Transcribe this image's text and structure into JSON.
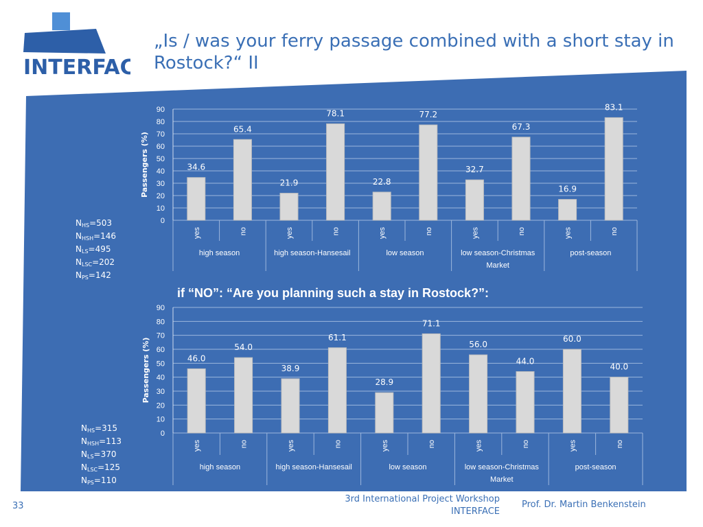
{
  "logo": {
    "text": "INTERFACE"
  },
  "title": "„Is / was your ferry passage combined with a short stay in Rostock?“ II",
  "question": "if “NO”: “Are you planning such a stay in Rostock?”:",
  "colors": {
    "panel": "#3d6db3",
    "bar": "#d9d9d9",
    "bar_edge": "#bfbfbf",
    "text_blue": "#3a6fb5"
  },
  "n_values": {
    "chart1": [
      {
        "main": "N",
        "sub": "HS",
        "value": "=503"
      },
      {
        "main": "N",
        "sub": "HSH",
        "value": "=146"
      },
      {
        "main": "N",
        "sub": "LS",
        "value": "=495"
      },
      {
        "main": "N",
        "sub": "LSC",
        "value": "=202"
      },
      {
        "main": "N",
        "sub": "PS",
        "value": "=142"
      }
    ],
    "chart2": [
      {
        "main": "N",
        "sub": "HS",
        "value": "=315"
      },
      {
        "main": "N",
        "sub": "HSH",
        "value": "=113"
      },
      {
        "main": "N",
        "sub": "LS",
        "value": "=370"
      },
      {
        "main": "N",
        "sub": "LSC",
        "value": "=125"
      },
      {
        "main": "N",
        "sub": "PS",
        "value": "=110"
      }
    ]
  },
  "chart_data": [
    {
      "type": "bar",
      "ylabel": "Passengers (%)",
      "ylim": [
        0,
        90
      ],
      "yticks": [
        0,
        10,
        20,
        30,
        40,
        50,
        60,
        70,
        80,
        90
      ],
      "grid": true,
      "groups": [
        "high season",
        "high season-Hansesail",
        "low season",
        "low season-Christmas Market",
        "post-season"
      ],
      "categories": [
        "yes",
        "no",
        "yes",
        "no",
        "yes",
        "no",
        "yes",
        "no",
        "yes",
        "no"
      ],
      "values": [
        34.6,
        65.4,
        21.9,
        78.1,
        22.8,
        77.2,
        32.7,
        67.3,
        16.9,
        83.1
      ],
      "value_labels": [
        "34.6",
        "65.4",
        "21.9",
        "78.1",
        "22.8",
        "77.2",
        "32.7",
        "67.3",
        "16.9",
        "83.1"
      ]
    },
    {
      "type": "bar",
      "ylabel": "Passengers (%)",
      "ylim": [
        0,
        90
      ],
      "yticks": [
        0,
        10,
        20,
        30,
        40,
        50,
        60,
        70,
        80,
        90
      ],
      "grid": true,
      "groups": [
        "high season",
        "high season-Hansesail",
        "low season",
        "low season-Christmas Market",
        "post-season"
      ],
      "categories": [
        "yes",
        "no",
        "yes",
        "no",
        "yes",
        "no",
        "yes",
        "no",
        "yes",
        "no"
      ],
      "values": [
        46.0,
        54.0,
        38.9,
        61.1,
        28.9,
        71.1,
        56.0,
        44.0,
        60.0,
        40.0
      ],
      "value_labels": [
        "46.0",
        "54.0",
        "38.9",
        "61.1",
        "28.9",
        "71.1",
        "56.0",
        "44.0",
        "60.0",
        "40.0"
      ]
    }
  ],
  "footer": {
    "slide_number": "33",
    "workshop_line1": "3rd International Project Workshop",
    "workshop_line2": "INTERFACE",
    "author": "Prof. Dr. Martin Benkenstein"
  }
}
